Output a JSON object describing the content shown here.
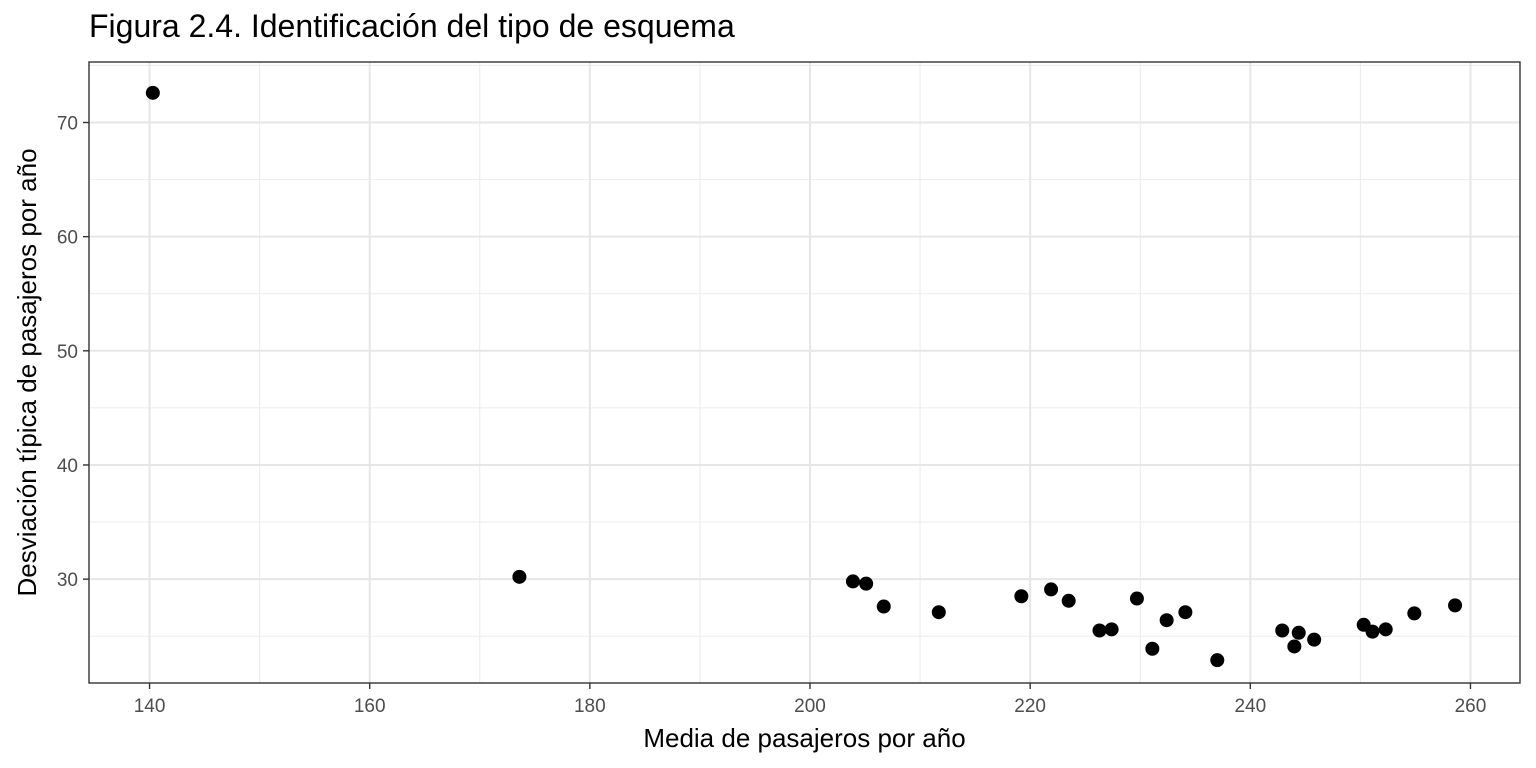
{
  "chart_data": {
    "type": "scatter",
    "title": "Figura 2.4. Identificación del tipo de esquema",
    "xlabel": "Media de pasajeros por año",
    "ylabel": "Desviación típica de pasajeros por año",
    "xlim": [
      134.5,
      264.5
    ],
    "ylim": [
      20.9,
      75.3
    ],
    "x_ticks": [
      140,
      160,
      180,
      200,
      220,
      240,
      260
    ],
    "y_ticks": [
      30,
      40,
      50,
      60,
      70
    ],
    "x_minor": [
      150,
      170,
      190,
      210,
      230,
      250
    ],
    "y_minor": [
      25,
      35,
      45,
      55,
      65,
      75
    ],
    "grid": true,
    "point_color": "#000000",
    "points": [
      {
        "x": 140.3,
        "y": 72.6
      },
      {
        "x": 173.6,
        "y": 30.2
      },
      {
        "x": 203.9,
        "y": 29.8
      },
      {
        "x": 205.1,
        "y": 29.6
      },
      {
        "x": 206.7,
        "y": 27.6
      },
      {
        "x": 211.7,
        "y": 27.1
      },
      {
        "x": 219.2,
        "y": 28.5
      },
      {
        "x": 221.9,
        "y": 29.1
      },
      {
        "x": 223.5,
        "y": 28.1
      },
      {
        "x": 226.3,
        "y": 25.5
      },
      {
        "x": 227.4,
        "y": 25.6
      },
      {
        "x": 229.7,
        "y": 28.3
      },
      {
        "x": 231.1,
        "y": 23.9
      },
      {
        "x": 232.4,
        "y": 26.4
      },
      {
        "x": 234.1,
        "y": 27.1
      },
      {
        "x": 237.0,
        "y": 22.9
      },
      {
        "x": 242.9,
        "y": 25.5
      },
      {
        "x": 244.0,
        "y": 24.1
      },
      {
        "x": 244.4,
        "y": 25.3
      },
      {
        "x": 245.8,
        "y": 24.7
      },
      {
        "x": 250.3,
        "y": 26.0
      },
      {
        "x": 251.1,
        "y": 25.4
      },
      {
        "x": 252.3,
        "y": 25.6
      },
      {
        "x": 254.9,
        "y": 27.0
      },
      {
        "x": 258.6,
        "y": 27.7
      }
    ]
  }
}
